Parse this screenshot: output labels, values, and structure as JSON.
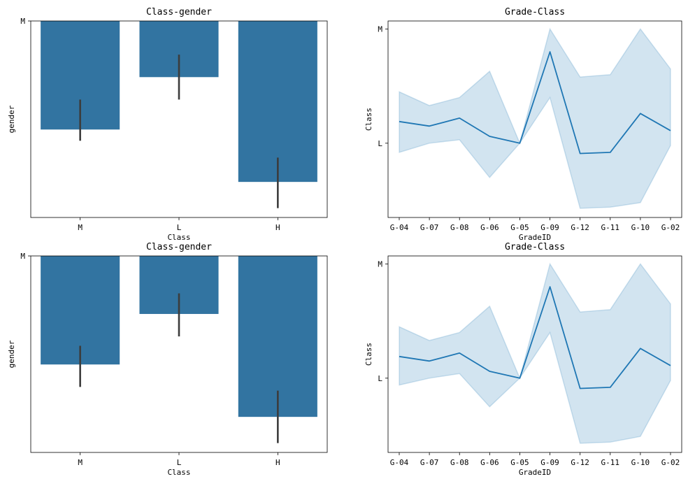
{
  "colors": {
    "bar_fill": "#3274a1",
    "error_bar": "#3c3c3c",
    "line": "#1f77b4",
    "band": "#1f77b4",
    "axis": "#000000",
    "background": "#ffffff"
  },
  "chart_data": [
    {
      "type": "bar",
      "title": "Class-gender",
      "xlabel": "Class",
      "ylabel": "gender",
      "categories": [
        "M",
        "L",
        "H"
      ],
      "values": [
        0.58,
        0.3,
        0.86
      ],
      "error_low": [
        0.42,
        0.18,
        0.73
      ],
      "error_high": [
        0.64,
        0.42,
        1.0
      ],
      "ylim": [
        0,
        1.05
      ],
      "inverted_y": true,
      "ytick_values": [
        0
      ],
      "ytick_labels": [
        "M"
      ]
    },
    {
      "type": "line",
      "title": "Grade-Class",
      "xlabel": "GradeID",
      "ylabel": "Class",
      "x": [
        "G-04",
        "G-07",
        "G-08",
        "G-06",
        "G-05",
        "G-09",
        "G-12",
        "G-11",
        "G-10",
        "G-02"
      ],
      "values": [
        0.81,
        0.85,
        0.78,
        0.94,
        1.0,
        0.2,
        1.09,
        1.08,
        0.74,
        0.89
      ],
      "ci_low": [
        0.55,
        0.67,
        0.6,
        0.37,
        1.0,
        0.0,
        0.42,
        0.4,
        0.0,
        0.35
      ],
      "ci_high": [
        1.08,
        1.0,
        0.97,
        1.3,
        1.0,
        0.6,
        1.57,
        1.56,
        1.52,
        1.02
      ],
      "ylim": [
        -0.07,
        1.65
      ],
      "inverted_y": true,
      "ytick_values": [
        0,
        1
      ],
      "ytick_labels": [
        "M",
        "L"
      ]
    },
    {
      "type": "bar",
      "title": "Class-gender",
      "xlabel": "Class",
      "ylabel": "gender",
      "categories": [
        "M",
        "L",
        "H"
      ],
      "values": [
        0.58,
        0.31,
        0.86
      ],
      "error_low": [
        0.48,
        0.2,
        0.72
      ],
      "error_high": [
        0.7,
        0.43,
        1.0
      ],
      "ylim": [
        0,
        1.05
      ],
      "inverted_y": true,
      "ytick_values": [
        0
      ],
      "ytick_labels": [
        "M"
      ]
    },
    {
      "type": "line",
      "title": "Grade-Class",
      "xlabel": "GradeID",
      "ylabel": "Class",
      "x": [
        "G-04",
        "G-07",
        "G-08",
        "G-06",
        "G-05",
        "G-09",
        "G-12",
        "G-11",
        "G-10",
        "G-02"
      ],
      "values": [
        0.81,
        0.85,
        0.78,
        0.94,
        1.0,
        0.2,
        1.09,
        1.08,
        0.74,
        0.89
      ],
      "ci_low": [
        0.55,
        0.67,
        0.6,
        0.37,
        1.0,
        0.0,
        0.42,
        0.4,
        0.0,
        0.35
      ],
      "ci_high": [
        1.06,
        1.0,
        0.96,
        1.25,
        1.0,
        0.6,
        1.57,
        1.56,
        1.51,
        1.02
      ],
      "ylim": [
        -0.07,
        1.65
      ],
      "inverted_y": true,
      "ytick_values": [
        0,
        1
      ],
      "ytick_labels": [
        "M",
        "L"
      ]
    }
  ]
}
